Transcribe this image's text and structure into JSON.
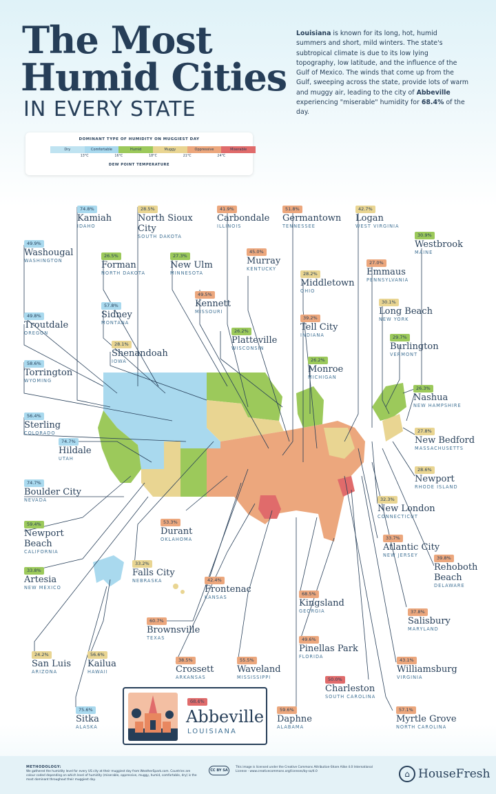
{
  "header": {
    "title_line1": "The Most",
    "title_line2": "Humid Cities",
    "title_line3": "IN EVERY STATE"
  },
  "intro": {
    "lead": "Louisiana",
    "text1": " is known for its long, hot, humid summers and short, mild winters. The state's subtropical climate is due to its low lying topography, low latitude, and the influence of the Gulf of Mexico. The winds that come up from the Gulf, sweeping across the state, provide lots of warm and muggy air, leading to the city of ",
    "city": "Abbeville",
    "text2": " experiencing \"miserable\" humidity for ",
    "pct": "68.4%",
    "text3": " of the day."
  },
  "legend": {
    "title": "DOMINANT TYPE OF HUMIDITY ON MUGGIEST DAY",
    "categories": [
      {
        "label": "Dry",
        "color": "#bfe3f1"
      },
      {
        "label": "Comfortable",
        "color": "#a9d9ee"
      },
      {
        "label": "Humid",
        "color": "#9cc95b"
      },
      {
        "label": "Muggy",
        "color": "#e9d592"
      },
      {
        "label": "Oppressive",
        "color": "#eca77d"
      },
      {
        "label": "Miserable",
        "color": "#e06b6b"
      }
    ],
    "ticks": [
      "13°C",
      "16°C",
      "18°C",
      "21°C",
      "24°C"
    ],
    "footer": "DEW POINT TEMPERATURE"
  },
  "cities": [
    {
      "pct": "74.8%",
      "name": "Kamiah",
      "state": "IDAHO",
      "color": "#a9d9ee"
    },
    {
      "pct": "28.5%",
      "name": "North Sioux City",
      "state": "SOUTH DAKOTA",
      "color": "#e9d592"
    },
    {
      "pct": "41.9%",
      "name": "Carbondale",
      "state": "ILLINOIS",
      "color": "#eca77d"
    },
    {
      "pct": "51.8%",
      "name": "Germantown",
      "state": "TENNESSEE",
      "color": "#eca77d"
    },
    {
      "pct": "42.7%",
      "name": "Logan",
      "state": "WEST VIRGINIA",
      "color": "#e9d592"
    },
    {
      "pct": "30.9%",
      "name": "Westbrook",
      "state": "MAINE",
      "color": "#9cc95b"
    },
    {
      "pct": "49.9%",
      "name": "Washougal",
      "state": "WASHINGTON",
      "color": "#a9d9ee"
    },
    {
      "pct": "26.5%",
      "name": "Forman",
      "state": "NORTH DAKOTA",
      "color": "#9cc95b"
    },
    {
      "pct": "27.3%",
      "name": "New Ulm",
      "state": "MINNESOTA",
      "color": "#9cc95b"
    },
    {
      "pct": "45.0%",
      "name": "Murray",
      "state": "KENTUCKY",
      "color": "#eca77d"
    },
    {
      "pct": "27.0%",
      "name": "Emmaus",
      "state": "PENNSYLVANIA",
      "color": "#eca77d"
    },
    {
      "pct": "28.2%",
      "name": "Middletown",
      "state": "OHIO",
      "color": "#e9d592"
    },
    {
      "pct": "49.5%",
      "name": "Kennett",
      "state": "MISSOURI",
      "color": "#eca77d"
    },
    {
      "pct": "57.8%",
      "name": "Sidney",
      "state": "MONTANA",
      "color": "#a9d9ee"
    },
    {
      "pct": "49.8%",
      "name": "Troutdale",
      "state": "OREGON",
      "color": "#a9d9ee"
    },
    {
      "pct": "30.1%",
      "name": "Long Beach",
      "state": "NEW YORK",
      "color": "#e9d592"
    },
    {
      "pct": "39.2%",
      "name": "Tell City",
      "state": "INDIANA",
      "color": "#eca77d"
    },
    {
      "pct": "26.2%",
      "name": "Platteville",
      "state": "WISCONSIN",
      "color": "#9cc95b"
    },
    {
      "pct": "28.1%",
      "name": "Shenandoah",
      "state": "IOWA",
      "color": "#e9d592"
    },
    {
      "pct": "29.7%",
      "name": "Burlington",
      "state": "VERMONT",
      "color": "#9cc95b"
    },
    {
      "pct": "58.6%",
      "name": "Torrington",
      "state": "WYOMING",
      "color": "#a9d9ee"
    },
    {
      "pct": "26.2%",
      "name": "Monroe",
      "state": "MICHIGAN",
      "color": "#9cc95b"
    },
    {
      "pct": "26.3%",
      "name": "Nashua",
      "state": "NEW HAMPSHIRE",
      "color": "#9cc95b"
    },
    {
      "pct": "56.4%",
      "name": "Sterling",
      "state": "COLORADO",
      "color": "#a9d9ee"
    },
    {
      "pct": "27.8%",
      "name": "New Bedford",
      "state": "MASSACHUSETTS",
      "color": "#e9d592"
    },
    {
      "pct": "74.7%",
      "name": "Hildale",
      "state": "UTAH",
      "color": "#a9d9ee"
    },
    {
      "pct": "28.6%",
      "name": "Newport",
      "state": "RHODE ISLAND",
      "color": "#e9d592"
    },
    {
      "pct": "74.7%",
      "name": "Boulder City",
      "state": "NEVADA",
      "color": "#a9d9ee"
    },
    {
      "pct": "32.3%",
      "name": "New London",
      "state": "CONNECTICUT",
      "color": "#e9d592"
    },
    {
      "pct": "53.3%",
      "name": "Durant",
      "state": "OKLAHOMA",
      "color": "#eca77d"
    },
    {
      "pct": "59.4%",
      "name": "Newport Beach",
      "state": "CALIFORNIA",
      "color": "#9cc95b"
    },
    {
      "pct": "33.7%",
      "name": "Atlantic City",
      "state": "NEW JERSEY",
      "color": "#eca77d"
    },
    {
      "pct": "39.8%",
      "name": "Rehoboth Beach",
      "state": "DELAWARE",
      "color": "#eca77d"
    },
    {
      "pct": "33.8%",
      "name": "Artesia",
      "state": "NEW MEXICO",
      "color": "#9cc95b"
    },
    {
      "pct": "33.2%",
      "name": "Falls City",
      "state": "NEBRASKA",
      "color": "#e9d592"
    },
    {
      "pct": "42.4%",
      "name": "Frontenac",
      "state": "KANSAS",
      "color": "#eca77d"
    },
    {
      "pct": "68.5%",
      "name": "Kingsland",
      "state": "GEORGIA",
      "color": "#eca77d"
    },
    {
      "pct": "37.8%",
      "name": "Salisbury",
      "state": "MARYLAND",
      "color": "#eca77d"
    },
    {
      "pct": "60.7%",
      "name": "Brownsville",
      "state": "TEXAS",
      "color": "#eca77d"
    },
    {
      "pct": "49.6%",
      "name": "Pinellas Park",
      "state": "FLORIDA",
      "color": "#eca77d"
    },
    {
      "pct": "24.2%",
      "name": "San Luis",
      "state": "ARIZONA",
      "color": "#e9d592"
    },
    {
      "pct": "56.6%",
      "name": "Kailua",
      "state": "HAWAII",
      "color": "#e9d592"
    },
    {
      "pct": "38.5%",
      "name": "Crossett",
      "state": "ARKANSAS",
      "color": "#eca77d"
    },
    {
      "pct": "55.5%",
      "name": "Waveland",
      "state": "MISSISSIPPI",
      "color": "#eca77d"
    },
    {
      "pct": "43.1%",
      "name": "Williamsburg",
      "state": "VIRGINIA",
      "color": "#eca77d"
    },
    {
      "pct": "50.0%",
      "name": "Charleston",
      "state": "SOUTH CAROLINA",
      "color": "#e06b6b"
    },
    {
      "pct": "75.6%",
      "name": "Sitka",
      "state": "ALASKA",
      "color": "#a9d9ee"
    },
    {
      "pct": "59.6%",
      "name": "Daphne",
      "state": "ALABAMA",
      "color": "#eca77d"
    },
    {
      "pct": "57.1%",
      "name": "Myrtle Grove",
      "state": "NORTH CAROLINA",
      "color": "#eca77d"
    }
  ],
  "featured": {
    "pct": "68.4%",
    "name": "Abbeville",
    "state": "LOUISIANA",
    "color": "#e06b6b"
  },
  "footer": {
    "methodology_title": "METHODOLOGY:",
    "methodology": "We gathered the humidity level for every US city at their muggiest day from WeatherSpark.com. Countries are colour coded depending on which level of humidity (miserable, oppressive, muggy, humid, comfortable, dry) is the most dominant throughout their muggiest day.",
    "cc": "CC BY SA",
    "license": "This image is licensed under the Creative Commons Attribution-Share Alike 4.0 International License - www.creativecommons.org/licenses/by-sa/4.0",
    "logo": "HouseFresh"
  }
}
